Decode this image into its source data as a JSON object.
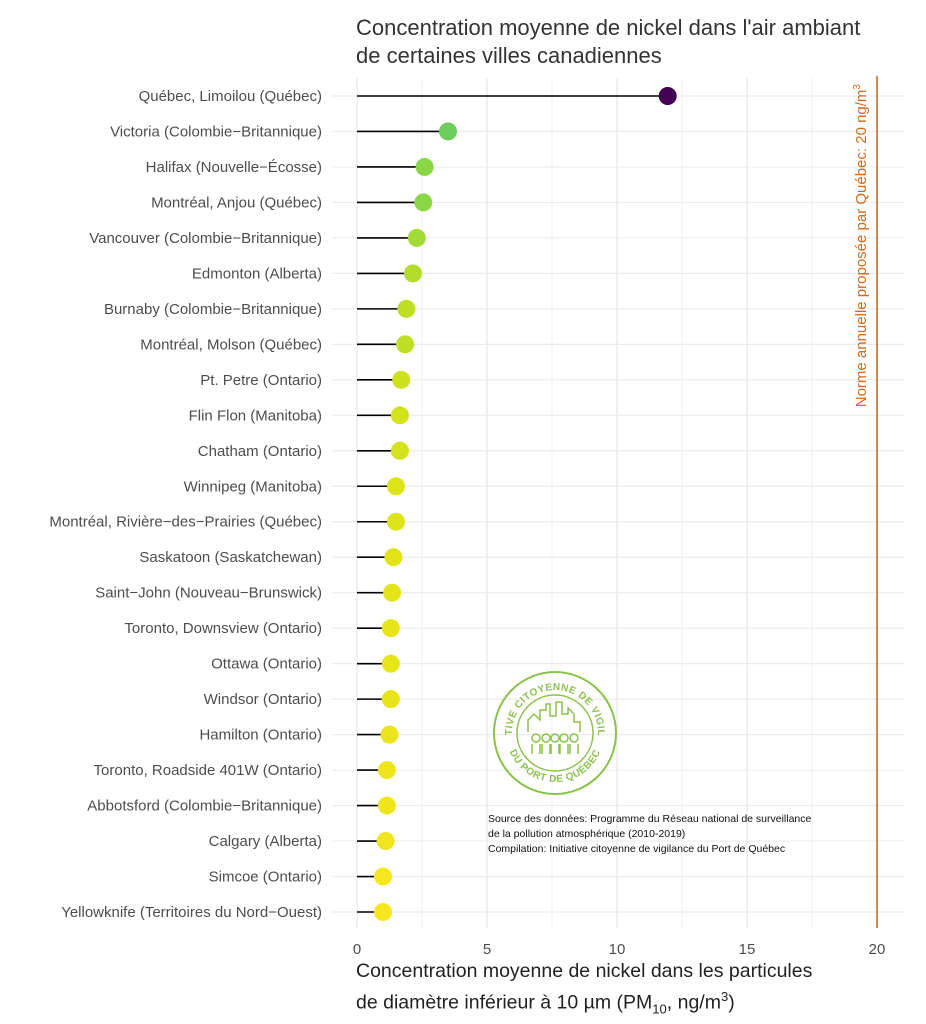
{
  "chart_data": {
    "type": "lollipop",
    "title_lines": [
      "Concentration moyenne de nickel dans l'air ambiant",
      "de certaines villes canadiennes"
    ],
    "xlabel_line1": "Concentration moyenne de nickel dans les particules",
    "xlabel_line2_parts": {
      "pre": "de diamètre inférieur à 10 ",
      "mu": "µ",
      "unit": "m (PM",
      "sub": "10",
      "post": ", ng/m",
      "sup": "3",
      "close": ")"
    },
    "xlim": [
      0,
      20
    ],
    "x_ticks": [
      0,
      5,
      10,
      15,
      20
    ],
    "grid": true,
    "categories": [
      "Québec, Limoilou (Québec)",
      "Victoria (Colombie−Britannique)",
      "Halifax (Nouvelle−Écosse)",
      "Montréal, Anjou (Québec)",
      "Vancouver (Colombie−Britannique)",
      "Edmonton (Alberta)",
      "Burnaby (Colombie−Britannique)",
      "Montréal, Molson (Québec)",
      "Pt. Petre (Ontario)",
      "Flin Flon (Manitoba)",
      "Chatham (Ontario)",
      "Winnipeg (Manitoba)",
      "Montréal, Rivière−des−Prairies (Québec)",
      "Saskatoon (Saskatchewan)",
      "Saint−John (Nouveau−Brunswick)",
      "Toronto, Downsview (Ontario)",
      "Ottawa (Ontario)",
      "Windsor (Ontario)",
      "Hamilton (Ontario)",
      "Toronto, Roadside 401W (Ontario)",
      "Abbotsford (Colombie−Britannique)",
      "Calgary (Alberta)",
      "Simcoe (Ontario)",
      "Yellowknife (Territoires du Nord−Ouest)"
    ],
    "values": [
      11.95,
      3.5,
      2.6,
      2.55,
      2.3,
      2.15,
      1.9,
      1.85,
      1.7,
      1.65,
      1.65,
      1.5,
      1.5,
      1.4,
      1.35,
      1.3,
      1.3,
      1.3,
      1.25,
      1.15,
      1.15,
      1.1,
      1.0,
      1.0
    ],
    "point_colors": [
      "#440154",
      "#6ccd5a",
      "#8bd646",
      "#8bd646",
      "#a2da37",
      "#b2dd2c",
      "#bddf26",
      "#bddf26",
      "#cde11d",
      "#d2e21b",
      "#d2e21b",
      "#dde318",
      "#dde318",
      "#e2e418",
      "#e5e419",
      "#e7e419",
      "#e7e419",
      "#e7e419",
      "#eae51a",
      "#efe51c",
      "#efe51c",
      "#f1e51d",
      "#f5e61f",
      "#f5e61f"
    ],
    "norm_line": {
      "value": 20,
      "label": "Norme annuelle proposée par Québec: 20 ng/m",
      "label_sup": "3",
      "color": "#d2691e"
    }
  },
  "source_note": [
    "Source des données: Programme du Réseau national de surveillance",
    "de la pollution atmosphérique (2010-2019)",
    "Compilation: Initiative citoyenne de vigilance du Port de Québec"
  ],
  "logo": {
    "text_top": "INITIATIVE CITOYENNE DE VIGILANCE",
    "text_bottom": "DU PORT DE QUÉBEC",
    "color": "#8bc34a"
  }
}
